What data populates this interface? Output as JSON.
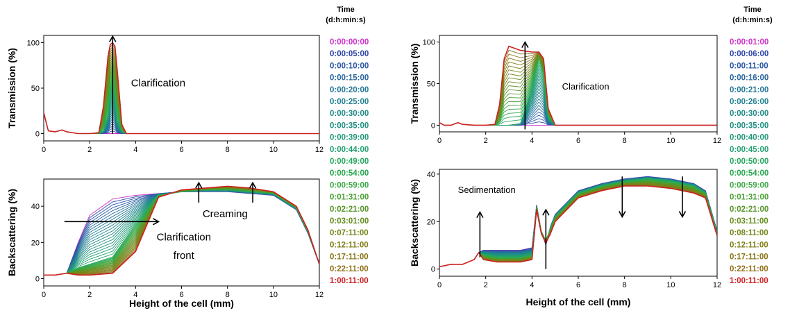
{
  "chart_data": [
    {
      "id": "left",
      "legend": {
        "title": [
          "Time",
          "(d:h:min:s)"
        ],
        "entries": [
          {
            "label": "0:00:00:00",
            "color": "#cc33cc"
          },
          {
            "label": "0:00:05:00",
            "color": "#2a44a8"
          },
          {
            "label": "0:00:10:00",
            "color": "#2a55a8"
          },
          {
            "label": "0:00:15:00",
            "color": "#2a66a0"
          },
          {
            "label": "0:00:20:00",
            "color": "#227799"
          },
          {
            "label": "0:00:25:00",
            "color": "#1f8090"
          },
          {
            "label": "0:00:30:00",
            "color": "#1f8a88"
          },
          {
            "label": "0:00:35:00",
            "color": "#1f9080"
          },
          {
            "label": "0:00:39:00",
            "color": "#209878"
          },
          {
            "label": "0:00:44:00",
            "color": "#22a070"
          },
          {
            "label": "0:00:49:00",
            "color": "#26a860"
          },
          {
            "label": "0:00:54:00",
            "color": "#2aa850"
          },
          {
            "label": "0:00:59:00",
            "color": "#38a840"
          },
          {
            "label": "0:01:31:00",
            "color": "#48a030"
          },
          {
            "label": "0:02:21:00",
            "color": "#589628"
          },
          {
            "label": "0:03:01:00",
            "color": "#668e20"
          },
          {
            "label": "0:07:11:00",
            "color": "#74861c"
          },
          {
            "label": "0:12:11:00",
            "color": "#7e7e18"
          },
          {
            "label": "0:17:11:00",
            "color": "#887618"
          },
          {
            "label": "0:22:11:00",
            "color": "#907018"
          },
          {
            "label": "1:00:11:00",
            "color": "#cc2020"
          }
        ]
      },
      "top": {
        "type": "line",
        "ylabel": "Transmission (%)",
        "xlabel": "",
        "xlim": [
          0,
          12
        ],
        "ylim": [
          -8,
          108
        ],
        "xticks": [
          "0",
          "2",
          "4",
          "6",
          "8",
          "10",
          "12"
        ],
        "yticks": [
          "0",
          "50",
          "100"
        ],
        "annotations": [
          "Clarification"
        ],
        "series": [
          {
            "time": "0:00:00:00",
            "x": [
              0,
              0.2,
              0.5,
              0.8,
              1.0,
              1.5,
              2.0,
              2.4,
              2.6,
              2.8,
              2.9,
              3.0,
              3.1,
              3.2,
              3.4,
              3.6,
              12
            ],
            "y": [
              23,
              3,
              2,
              4,
              2,
              0,
              0,
              0,
              0,
              0,
              0,
              0,
              0,
              0,
              0,
              0,
              0
            ]
          },
          {
            "time": "0:00:20:00",
            "x": [
              0,
              0.2,
              0.5,
              0.8,
              1.0,
              1.5,
              2.0,
              2.4,
              2.6,
              2.8,
              2.9,
              3.0,
              3.1,
              3.2,
              3.4,
              3.6,
              12
            ],
            "y": [
              23,
              3,
              2,
              4,
              2,
              0,
              0,
              0,
              3,
              20,
              45,
              55,
              40,
              15,
              2,
              0,
              0
            ]
          },
          {
            "time": "1:00:11:00",
            "x": [
              0,
              0.2,
              0.5,
              0.8,
              1.0,
              1.5,
              2.0,
              2.4,
              2.6,
              2.8,
              2.9,
              3.0,
              3.1,
              3.2,
              3.4,
              3.6,
              12
            ],
            "y": [
              23,
              3,
              2,
              4,
              2,
              0,
              0,
              1,
              30,
              85,
              98,
              100,
              96,
              70,
              10,
              0,
              0
            ]
          }
        ]
      },
      "bottom": {
        "type": "line",
        "ylabel": "Backscattering (%)",
        "xlabel": "Height of the cell (mm)",
        "xlim": [
          0,
          12
        ],
        "ylim": [
          -4,
          55
        ],
        "xticks": [
          "0",
          "2",
          "4",
          "6",
          "8",
          "10",
          "12"
        ],
        "yticks": [
          "0",
          "20",
          "40"
        ],
        "annotations": [
          "Creaming",
          "Clarification",
          "front"
        ],
        "series": [
          {
            "time": "0:00:00:00",
            "x": [
              0,
              0.5,
              1.0,
              1.5,
              2.0,
              3.0,
              4.0,
              5.0,
              6.0,
              7.0,
              8.0,
              9.0,
              10.0,
              11.0,
              11.5,
              12
            ],
            "y": [
              2,
              2,
              3,
              20,
              35,
              44,
              46,
              47,
              48,
              48,
              48,
              47,
              46,
              38,
              25,
              8
            ]
          },
          {
            "time": "0:00:59:00",
            "x": [
              0,
              0.5,
              1.0,
              1.5,
              2.0,
              3.0,
              4.0,
              5.0,
              6.0,
              7.0,
              8.0,
              9.0,
              10.0,
              11.0,
              11.5,
              12
            ],
            "y": [
              2,
              2,
              3,
              6,
              8,
              12,
              30,
              46,
              48,
              49,
              49,
              48,
              47,
              39,
              26,
              8
            ]
          },
          {
            "time": "1:00:11:00",
            "x": [
              0,
              0.5,
              1.0,
              1.5,
              2.0,
              3.0,
              4.0,
              5.0,
              6.0,
              7.0,
              8.0,
              9.0,
              10.0,
              11.0,
              11.5,
              12
            ],
            "y": [
              2,
              2,
              3,
              2,
              2,
              3,
              15,
              45,
              49,
              50,
              51,
              50,
              48,
              40,
              27,
              8
            ]
          }
        ]
      }
    },
    {
      "id": "right",
      "legend": {
        "title": [
          "Time",
          "(d:h:min:s)"
        ],
        "entries": [
          {
            "label": "0:00:01:00",
            "color": "#cc33cc"
          },
          {
            "label": "0:00:06:00",
            "color": "#2a44a8"
          },
          {
            "label": "0:00:11:00",
            "color": "#2a55a8"
          },
          {
            "label": "0:00:16:00",
            "color": "#2a66a0"
          },
          {
            "label": "0:00:21:00",
            "color": "#227799"
          },
          {
            "label": "0:00:26:00",
            "color": "#1f8090"
          },
          {
            "label": "0:00:30:00",
            "color": "#1f8a88"
          },
          {
            "label": "0:00:35:00",
            "color": "#1f9080"
          },
          {
            "label": "0:00:40:00",
            "color": "#209878"
          },
          {
            "label": "0:00:45:00",
            "color": "#22a070"
          },
          {
            "label": "0:00:50:00",
            "color": "#26a860"
          },
          {
            "label": "0:00:54:00",
            "color": "#2aa850"
          },
          {
            "label": "0:00:59:00",
            "color": "#38a840"
          },
          {
            "label": "0:01:31:00",
            "color": "#48a030"
          },
          {
            "label": "0:02:21:00",
            "color": "#589628"
          },
          {
            "label": "0:03:11:00",
            "color": "#668e20"
          },
          {
            "label": "0:08:11:00",
            "color": "#74861c"
          },
          {
            "label": "0:12:11:00",
            "color": "#7e7e18"
          },
          {
            "label": "0:17:11:00",
            "color": "#887618"
          },
          {
            "label": "0:22:11:00",
            "color": "#907018"
          },
          {
            "label": "1:00:11:00",
            "color": "#cc2020"
          }
        ]
      },
      "top": {
        "type": "line",
        "ylabel": "Transmission (%)",
        "xlabel": "",
        "xlim": [
          0,
          12
        ],
        "ylim": [
          -8,
          108
        ],
        "xticks": [
          "0",
          "2",
          "4",
          "6",
          "8",
          "10",
          "12"
        ],
        "yticks": [
          "0",
          "50",
          "100"
        ],
        "annotations": [
          "Clarification"
        ],
        "series": [
          {
            "time": "0:00:01:00",
            "x": [
              0,
              0.2,
              0.5,
              0.8,
              1.0,
              1.5,
              2.0,
              2.4,
              2.6,
              2.8,
              3.0,
              3.5,
              4.0,
              4.3,
              4.5,
              4.7,
              5.0,
              12
            ],
            "y": [
              3,
              0,
              0,
              3,
              1,
              0,
              0,
              0,
              0,
              0,
              0,
              0,
              0,
              0,
              0,
              0,
              0,
              0
            ]
          },
          {
            "time": "0:00:40:00",
            "x": [
              0,
              0.2,
              0.5,
              0.8,
              1.0,
              1.5,
              2.0,
              2.4,
              2.6,
              2.8,
              3.0,
              3.5,
              4.0,
              4.3,
              4.5,
              4.7,
              5.0,
              12
            ],
            "y": [
              3,
              0,
              0,
              3,
              1,
              0,
              0,
              0,
              0,
              0,
              0,
              2,
              45,
              80,
              60,
              10,
              0,
              0
            ]
          },
          {
            "time": "1:00:11:00",
            "x": [
              0,
              0.2,
              0.5,
              0.8,
              1.0,
              1.5,
              2.0,
              2.4,
              2.6,
              2.8,
              3.0,
              3.5,
              4.0,
              4.3,
              4.5,
              4.7,
              5.0,
              12
            ],
            "y": [
              3,
              0,
              0,
              3,
              1,
              0,
              0,
              1,
              25,
              80,
              95,
              90,
              88,
              88,
              80,
              20,
              0,
              0
            ]
          }
        ]
      },
      "bottom": {
        "type": "line",
        "ylabel": "Backscattering (%)",
        "xlabel": "Height of the cell (mm)",
        "xlim": [
          0,
          12
        ],
        "ylim": [
          -3,
          42
        ],
        "xticks": [
          "0",
          "2",
          "4",
          "6",
          "8",
          "10",
          "12"
        ],
        "yticks": [
          "0",
          "20",
          "40"
        ],
        "annotations": [
          "Sedimentation"
        ],
        "series": [
          {
            "time": "0:00:01:00",
            "x": [
              0,
              0.5,
              1.0,
              1.5,
              1.7,
              1.9,
              2.5,
              3.5,
              4.0,
              4.2,
              4.4,
              4.6,
              4.8,
              5.0,
              6.0,
              7.0,
              8.0,
              9.0,
              10.0,
              11.0,
              11.5,
              12
            ],
            "y": [
              1,
              2,
              2,
              4,
              7,
              8,
              8,
              8,
              9,
              27,
              16,
              10,
              18,
              23,
              33,
              36,
              38,
              39,
              38,
              36,
              33,
              16
            ]
          },
          {
            "time": "0:00:59:00",
            "x": [
              0,
              0.5,
              1.0,
              1.5,
              1.7,
              1.9,
              2.5,
              3.5,
              4.0,
              4.2,
              4.4,
              4.6,
              4.8,
              5.0,
              6.0,
              7.0,
              8.0,
              9.0,
              10.0,
              11.0,
              11.5,
              12
            ],
            "y": [
              1,
              2,
              2,
              4,
              7,
              6,
              5,
              5,
              6,
              26,
              16,
              12,
              17,
              22,
              32,
              35,
              37,
              38,
              37,
              35,
              32,
              15
            ]
          },
          {
            "time": "1:00:11:00",
            "x": [
              0,
              0.5,
              1.0,
              1.5,
              1.7,
              1.9,
              2.5,
              3.5,
              4.0,
              4.2,
              4.4,
              4.6,
              4.8,
              5.0,
              6.0,
              7.0,
              8.0,
              9.0,
              10.0,
              11.0,
              11.5,
              12
            ],
            "y": [
              1,
              2,
              2,
              4,
              7,
              4,
              3,
              3,
              4,
              25,
              15,
              11,
              15,
              20,
              30,
              33,
              35,
              35,
              34,
              32,
              30,
              14
            ]
          }
        ]
      }
    }
  ]
}
